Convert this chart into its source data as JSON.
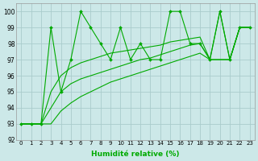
{
  "title": "",
  "xlabel": "Humidité relative (%)",
  "ylabel": "",
  "bg_color": "#cce8e8",
  "grid_color": "#aacccc",
  "line_color": "#00aa00",
  "xlim": [
    -0.5,
    23.5
  ],
  "ylim": [
    92,
    100.5
  ],
  "yticks": [
    92,
    93,
    94,
    95,
    96,
    97,
    98,
    99,
    100
  ],
  "xticks": [
    0,
    1,
    2,
    3,
    4,
    5,
    6,
    7,
    8,
    9,
    10,
    11,
    12,
    13,
    14,
    15,
    16,
    17,
    18,
    19,
    20,
    21,
    22,
    23
  ],
  "series_with_markers": [
    [
      93,
      93,
      93,
      99,
      95,
      97,
      100,
      99,
      98,
      97,
      99,
      97,
      98,
      97,
      97,
      100,
      100,
      98,
      98,
      97,
      100,
      97,
      99,
      99
    ]
  ],
  "series_smooth": [
    [
      93,
      93,
      93,
      95,
      96,
      96.5,
      96.8,
      97.0,
      97.2,
      97.4,
      97.5,
      97.6,
      97.7,
      97.8,
      97.9,
      98.1,
      98.2,
      98.3,
      98.4,
      97.0,
      100,
      97,
      99,
      99
    ],
    [
      93,
      93,
      93,
      94,
      95,
      95.5,
      95.8,
      96.0,
      96.2,
      96.4,
      96.6,
      96.8,
      97.0,
      97.1,
      97.3,
      97.5,
      97.7,
      97.9,
      98.0,
      97.0,
      97.0,
      97.0,
      99,
      99
    ],
    [
      93,
      93,
      93,
      93,
      93.8,
      94.3,
      94.7,
      95.0,
      95.3,
      95.6,
      95.8,
      96.0,
      96.2,
      96.4,
      96.6,
      96.8,
      97.0,
      97.2,
      97.4,
      97.0,
      97.0,
      97.0,
      99,
      99
    ]
  ]
}
